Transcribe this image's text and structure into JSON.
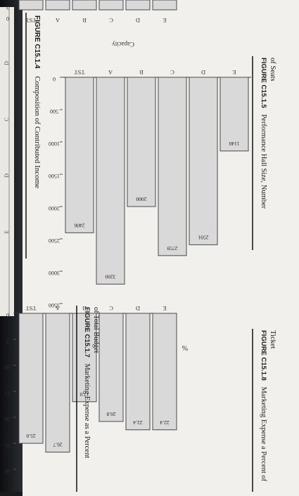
{
  "topbar": {
    "letters": [
      "D",
      "C",
      "D",
      "E"
    ]
  },
  "figure_c15_1_4": {
    "label": "FIGURE C15.1.4",
    "title": "Composition of Contributed Income"
  },
  "figure_c15_1_5": {
    "label": "FIGURE C15.1.5",
    "title": "Performance Hall Size, Number",
    "title2": "of Seats"
  },
  "figure_c15_1_7": {
    "label": "FIGURE C15.1.7",
    "title": "Marketing Expense as a Percent",
    "title2": "of Total Budget"
  },
  "figure_c15_1_8": {
    "label": "FIGURE C15.1.8",
    "title": "Marketing Expense a Percent of",
    "title2": "Ticket"
  },
  "chart_data": [
    {
      "type": "bar",
      "ylabel": "Capacity",
      "categories": [
        "TST",
        "A",
        "B",
        "C",
        "D",
        "E"
      ],
      "values": [
        2406,
        3200,
        2000,
        2759,
        2591,
        1140
      ],
      "ylim": [
        0,
        3500
      ],
      "yticks": [
        "0",
        "500",
        "1000",
        "1500",
        "2000",
        "2500",
        "3000",
        "3500"
      ]
    },
    {
      "type": "bar",
      "ylabel": "%",
      "categories": [
        "TST",
        "A",
        "B",
        "C",
        "D",
        "E"
      ],
      "values": [
        25.0,
        26.7,
        17.0,
        20.8,
        22.4,
        22.4
      ],
      "value_labels": [
        "25.0",
        "26.7",
        "17.0",
        "20.8",
        "22.4",
        "22.4"
      ],
      "ylim": [
        0,
        30
      ],
      "yticks": [
        "0",
        "5",
        "10",
        "15",
        "20",
        "25",
        "30"
      ]
    },
    {
      "type": "bar",
      "categories": [
        "TST",
        "A",
        "B",
        "C",
        "D",
        "E"
      ],
      "yticks": [
        "0",
        "2"
      ]
    }
  ],
  "colors": {
    "bar_fill": "#d9d9d9",
    "bar_stroke": "#4a4a4a",
    "page": "#f1f0ec",
    "background": "#1b1b1d"
  }
}
